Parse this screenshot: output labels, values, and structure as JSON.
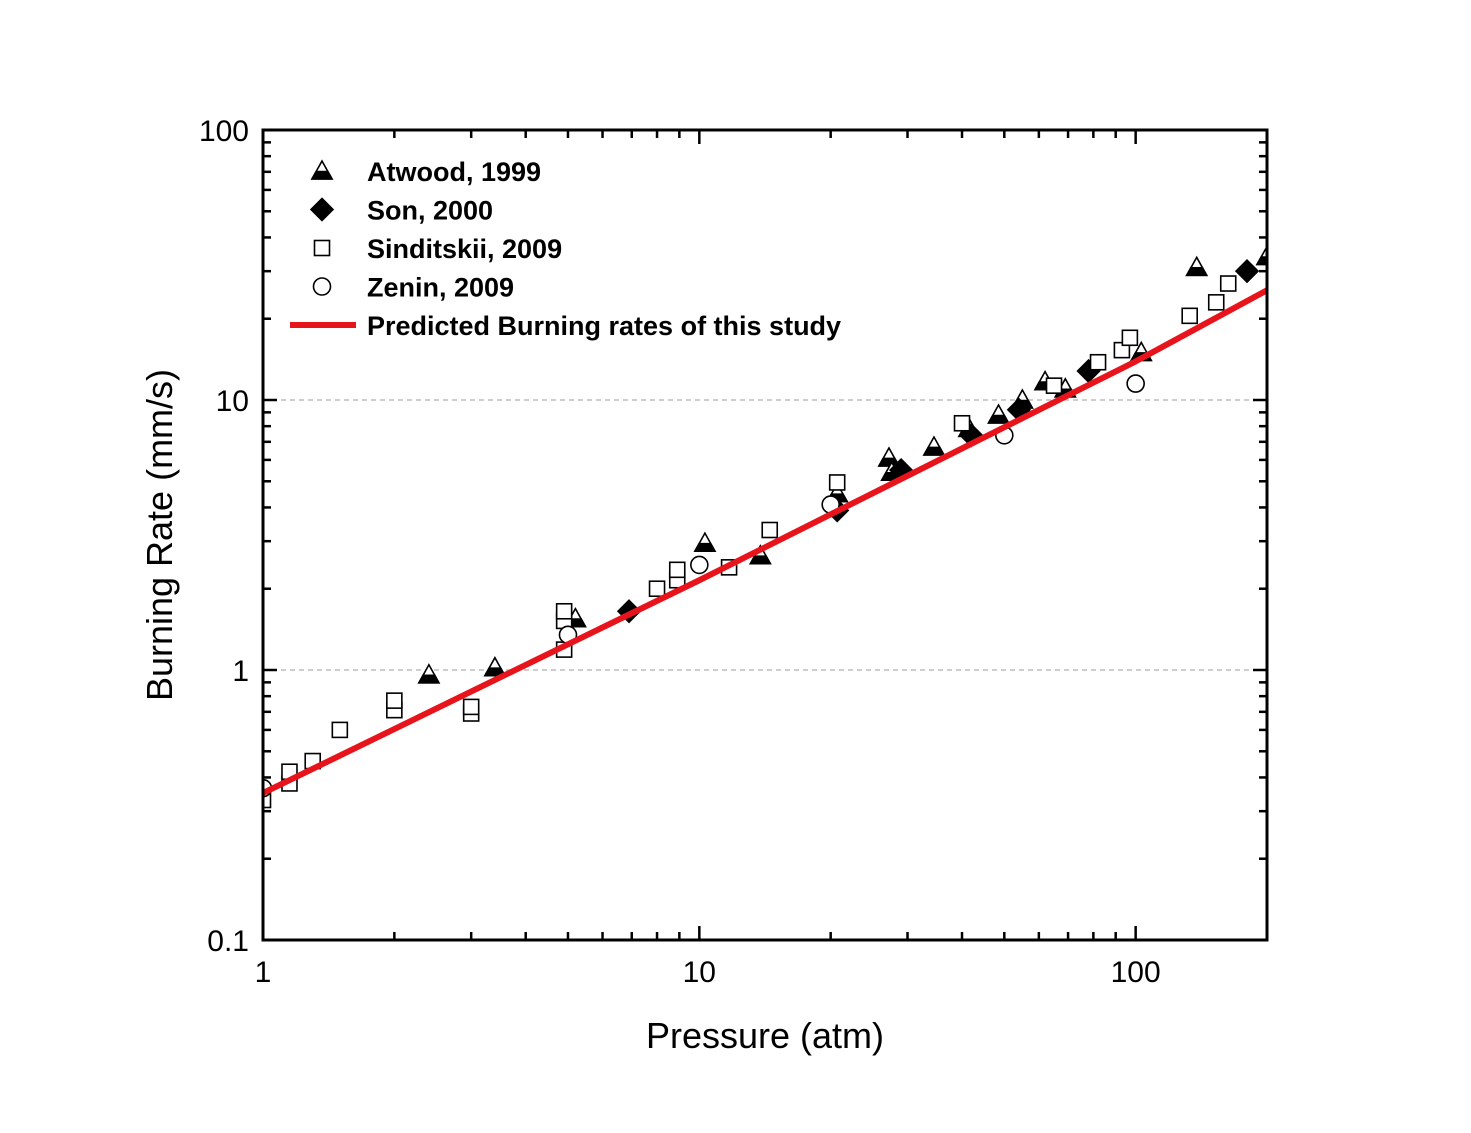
{
  "chart_data": {
    "type": "scatter",
    "xlabel": "Pressure (atm)",
    "ylabel": "Burning Rate (mm/s)",
    "xscale": "log",
    "yscale": "log",
    "xlim": [
      1,
      200
    ],
    "ylim": [
      0.1,
      100
    ],
    "x_ticks": [
      1,
      10,
      100
    ],
    "x_tick_labels": [
      "1",
      "10",
      "100"
    ],
    "y_ticks": [
      0.1,
      1,
      10,
      100
    ],
    "y_tick_labels": [
      "0.1",
      "1",
      "10",
      "100"
    ],
    "grid": "horizontal dashed at 1 and 10",
    "legend_position": "top-left",
    "series": [
      {
        "name": "Atwood, 1999",
        "marker": "half-filled-triangle",
        "color": "#000000",
        "points": [
          [
            2.4,
            0.96
          ],
          [
            3.4,
            1.02
          ],
          [
            5.2,
            1.55
          ],
          [
            10.3,
            2.95
          ],
          [
            13.8,
            2.65
          ],
          [
            20.7,
            4.5
          ],
          [
            27.2,
            6.1
          ],
          [
            27.6,
            5.4
          ],
          [
            34.5,
            6.7
          ],
          [
            41.5,
            7.85
          ],
          [
            48.5,
            8.8
          ],
          [
            55.0,
            10.0
          ],
          [
            62.0,
            11.7
          ],
          [
            69.0,
            11.0
          ],
          [
            103.0,
            15.0
          ],
          [
            138.0,
            31.0
          ],
          [
            200.0,
            34.0
          ]
        ]
      },
      {
        "name": "Son, 2000",
        "marker": "filled-diamond",
        "color": "#000000",
        "points": [
          [
            6.9,
            1.65
          ],
          [
            20.7,
            3.9
          ],
          [
            29.0,
            5.5
          ],
          [
            42.0,
            7.4
          ],
          [
            54.0,
            9.2
          ],
          [
            78.0,
            12.8
          ],
          [
            180.0,
            30.0
          ]
        ]
      },
      {
        "name": "Sinditskii, 2009",
        "marker": "open-square",
        "color": "#000000",
        "points": [
          [
            1.0,
            0.33
          ],
          [
            1.15,
            0.38
          ],
          [
            1.15,
            0.42
          ],
          [
            1.3,
            0.46
          ],
          [
            1.5,
            0.6
          ],
          [
            2.0,
            0.71
          ],
          [
            2.0,
            0.77
          ],
          [
            3.0,
            0.69
          ],
          [
            3.0,
            0.73
          ],
          [
            4.9,
            1.19
          ],
          [
            4.9,
            1.52
          ],
          [
            4.9,
            1.65
          ],
          [
            8.0,
            2.0
          ],
          [
            8.9,
            2.15
          ],
          [
            8.9,
            2.35
          ],
          [
            11.7,
            2.4
          ],
          [
            14.5,
            3.3
          ],
          [
            20.7,
            4.95
          ],
          [
            40.0,
            8.2
          ],
          [
            65.0,
            11.3
          ],
          [
            82.0,
            13.8
          ],
          [
            93.0,
            15.3
          ],
          [
            97.0,
            17.0
          ],
          [
            133.0,
            20.5
          ],
          [
            153.0,
            23.0
          ],
          [
            163.0,
            27.0
          ]
        ]
      },
      {
        "name": "Zenin, 2009",
        "marker": "open-circle",
        "color": "#000000",
        "points": [
          [
            1.0,
            0.365
          ],
          [
            5.0,
            1.35
          ],
          [
            10.0,
            2.45
          ],
          [
            20.0,
            4.1
          ],
          [
            50.0,
            7.4
          ],
          [
            100.0,
            11.5
          ]
        ]
      },
      {
        "name": "Predicted Burning rates of this study",
        "marker": "line",
        "color": "#e8141c",
        "points": [
          [
            1.0,
            0.35
          ],
          [
            10.0,
            2.15
          ],
          [
            100.0,
            13.9
          ],
          [
            200.0,
            25.5
          ]
        ]
      }
    ]
  }
}
